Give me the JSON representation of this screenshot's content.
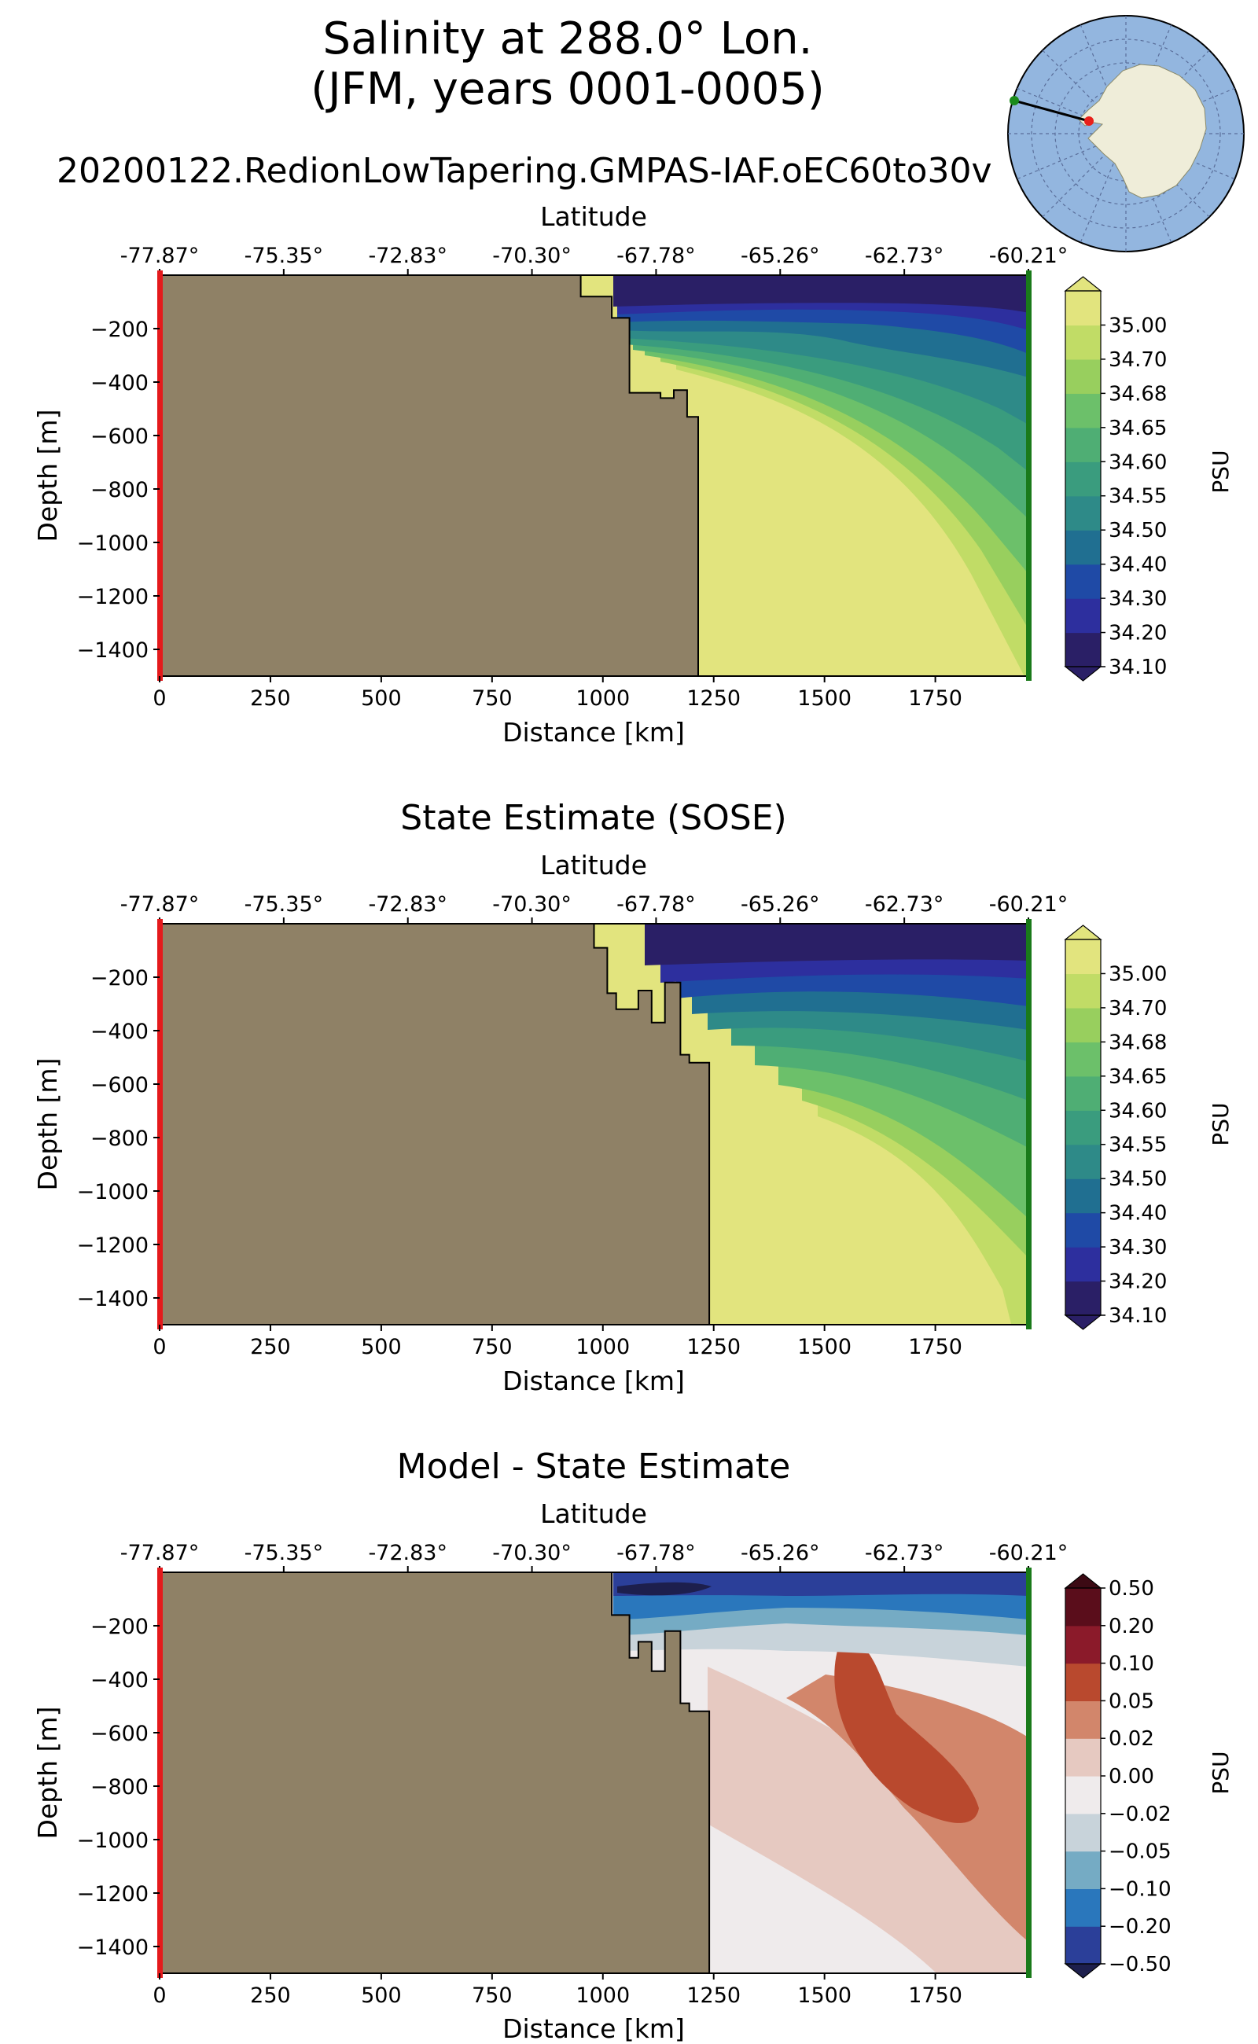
{
  "figure": {
    "title_line1": "Salinity at 288.0° Lon.",
    "title_line2": "(JFM, years 0001-0005)"
  },
  "inset_map": {
    "transect_start_color": "#1a8a1a",
    "transect_end_color": "#e8201a",
    "ocean_color": "#93b6df",
    "land_color": "#efedd9"
  },
  "colors": {
    "land": "#8f8166",
    "left_marker": "#e41a1c",
    "right_marker": "#1a7a1a"
  },
  "chart_data": [
    {
      "type": "heatmap",
      "title": "20200122.RedionLowTapering.GMPAS-IAF.oEC60to30v",
      "xlabel": "Distance [km]",
      "ylabel": "Depth [m]",
      "top_axis_label": "Latitude",
      "xlim": [
        0,
        1960
      ],
      "ylim": [
        -1500,
        0
      ],
      "xticks": [
        0,
        250,
        500,
        750,
        1000,
        1250,
        1500,
        1750
      ],
      "yticks": [
        -200,
        -400,
        -600,
        -800,
        -1000,
        -1200,
        -1400
      ],
      "latitude_ticks": [
        "-77.87°",
        "-75.35°",
        "-72.83°",
        "-70.30°",
        "-67.78°",
        "-65.26°",
        "-62.73°",
        "-60.21°"
      ],
      "colorbar_label": "PSU",
      "levels": [
        "34.10",
        "34.20",
        "34.30",
        "34.40",
        "34.50",
        "34.55",
        "34.60",
        "34.65",
        "34.68",
        "34.70",
        "35.00"
      ],
      "colors": [
        "#2a1f66",
        "#2d2f9e",
        "#1f4aa6",
        "#206f91",
        "#2e8a88",
        "#3a9c7e",
        "#4fae74",
        "#6cc06a",
        "#98cf5e",
        "#c1dc66",
        "#e2e47e"
      ],
      "extend": "both",
      "bathymetry": [
        [
          0,
          0
        ],
        [
          950,
          0
        ],
        [
          950,
          -80
        ],
        [
          1020,
          -80
        ],
        [
          1020,
          -160
        ],
        [
          1060,
          -160
        ],
        [
          1060,
          -440
        ],
        [
          1130,
          -440
        ],
        [
          1130,
          -460
        ],
        [
          1160,
          -460
        ],
        [
          1160,
          -430
        ],
        [
          1190,
          -430
        ],
        [
          1190,
          -530
        ],
        [
          1215,
          -530
        ],
        [
          1215,
          -1500
        ]
      ]
    },
    {
      "type": "heatmap",
      "title": "State Estimate (SOSE)",
      "xlabel": "Distance [km]",
      "ylabel": "Depth [m]",
      "top_axis_label": "Latitude",
      "xlim": [
        0,
        1960
      ],
      "ylim": [
        -1500,
        0
      ],
      "xticks": [
        0,
        250,
        500,
        750,
        1000,
        1250,
        1500,
        1750
      ],
      "yticks": [
        -200,
        -400,
        -600,
        -800,
        -1000,
        -1200,
        -1400
      ],
      "latitude_ticks": [
        "-77.87°",
        "-75.35°",
        "-72.83°",
        "-70.30°",
        "-67.78°",
        "-65.26°",
        "-62.73°",
        "-60.21°"
      ],
      "colorbar_label": "PSU",
      "levels": [
        "34.10",
        "34.20",
        "34.30",
        "34.40",
        "34.50",
        "34.55",
        "34.60",
        "34.65",
        "34.68",
        "34.70",
        "35.00"
      ],
      "colors": [
        "#2a1f66",
        "#2d2f9e",
        "#1f4aa6",
        "#206f91",
        "#2e8a88",
        "#3a9c7e",
        "#4fae74",
        "#6cc06a",
        "#98cf5e",
        "#c1dc66",
        "#e2e47e"
      ],
      "extend": "both",
      "bathymetry": [
        [
          0,
          0
        ],
        [
          980,
          0
        ],
        [
          980,
          -90
        ],
        [
          1010,
          -90
        ],
        [
          1010,
          -260
        ],
        [
          1030,
          -260
        ],
        [
          1030,
          -320
        ],
        [
          1080,
          -320
        ],
        [
          1080,
          -250
        ],
        [
          1110,
          -250
        ],
        [
          1110,
          -370
        ],
        [
          1140,
          -370
        ],
        [
          1140,
          -220
        ],
        [
          1175,
          -220
        ],
        [
          1175,
          -490
        ],
        [
          1195,
          -490
        ],
        [
          1195,
          -520
        ],
        [
          1240,
          -520
        ],
        [
          1240,
          -1500
        ]
      ]
    },
    {
      "type": "heatmap",
      "title": "Model - State Estimate",
      "xlabel": "Distance [km]",
      "ylabel": "Depth [m]",
      "top_axis_label": "Latitude",
      "xlim": [
        0,
        1960
      ],
      "ylim": [
        -1500,
        0
      ],
      "xticks": [
        0,
        250,
        500,
        750,
        1000,
        1250,
        1500,
        1750
      ],
      "yticks": [
        -200,
        -400,
        -600,
        -800,
        -1000,
        -1200,
        -1400
      ],
      "latitude_ticks": [
        "-77.87°",
        "-75.35°",
        "-72.83°",
        "-70.30°",
        "-67.78°",
        "-65.26°",
        "-62.73°",
        "-60.21°"
      ],
      "colorbar_label": "PSU",
      "levels": [
        "−0.50",
        "−0.20",
        "−0.10",
        "−0.05",
        "−0.02",
        "0.00",
        "0.02",
        "0.05",
        "0.10",
        "0.20",
        "0.50"
      ],
      "colors": [
        "#2b3f99",
        "#2a77bc",
        "#75abc4",
        "#c8d3da",
        "#efebec",
        "#e6c9c1",
        "#d2866b",
        "#b9492e",
        "#8b1a2a",
        "#5a0d1b"
      ],
      "colors_all": [
        "#1d1f4d",
        "#2b3f99",
        "#2a77bc",
        "#75abc4",
        "#c8d3da",
        "#efebec",
        "#e6c9c1",
        "#d2866b",
        "#b9492e",
        "#8b1a2a",
        "#3c0a14"
      ],
      "extend": "both",
      "bathymetry": [
        [
          0,
          0
        ],
        [
          1020,
          0
        ],
        [
          1020,
          -160
        ],
        [
          1060,
          -160
        ],
        [
          1060,
          -320
        ],
        [
          1080,
          -320
        ],
        [
          1080,
          -260
        ],
        [
          1110,
          -260
        ],
        [
          1110,
          -370
        ],
        [
          1140,
          -370
        ],
        [
          1140,
          -220
        ],
        [
          1175,
          -220
        ],
        [
          1175,
          -490
        ],
        [
          1195,
          -490
        ],
        [
          1195,
          -520
        ],
        [
          1240,
          -520
        ],
        [
          1240,
          -1500
        ]
      ]
    }
  ]
}
